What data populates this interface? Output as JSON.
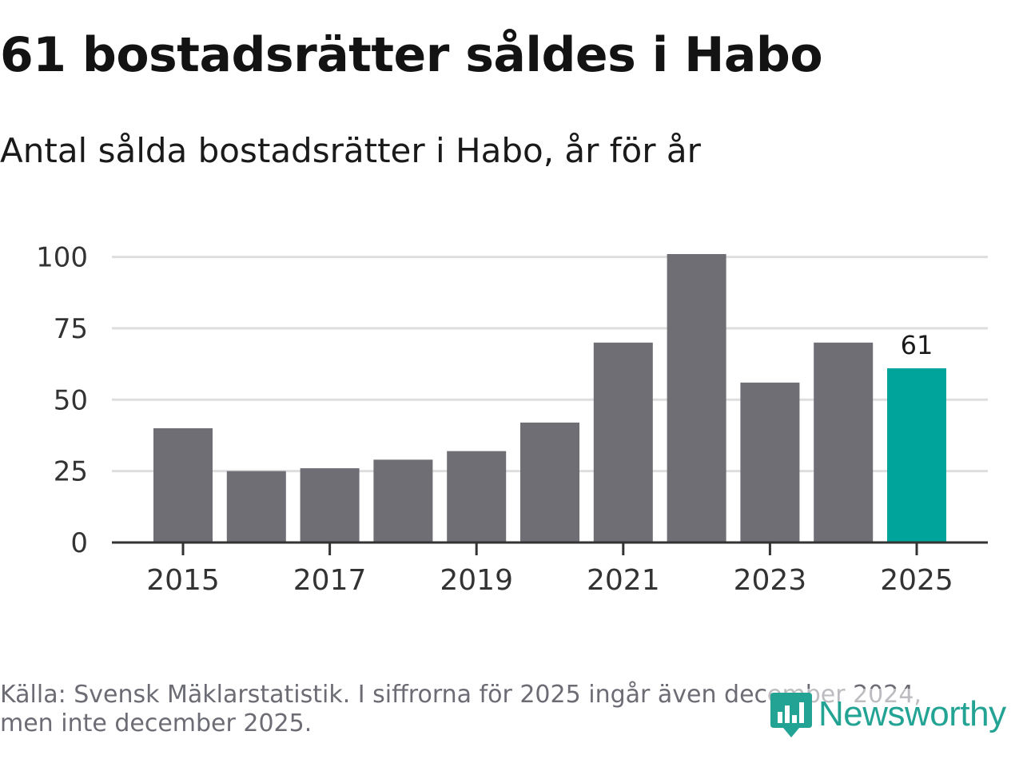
{
  "header": {
    "title": "61 bostadsrätter såldes i Habo",
    "subtitle": "Antal sålda bostadsrätter i Habo, år för år"
  },
  "footer": {
    "source_line1": "Källa: Svensk Mäklarstatistik. I siffrorna för 2025 ingår även december 2024,",
    "source_line2": "men inte december 2025.",
    "logo_text": "Newsworthy",
    "logo_icon": "newsworthy-logo-icon"
  },
  "colors": {
    "bar": "#6f6e75",
    "highlight": "#00a49a",
    "grid": "#dedede",
    "axis": "#333333",
    "tick_text": "#333333",
    "logo": "#22a394"
  },
  "chart_data": {
    "type": "bar",
    "title": "Antal sålda bostadsrätter i Habo, år för år",
    "xlabel": "",
    "ylabel": "",
    "categories": [
      "2015",
      "2016",
      "2017",
      "2018",
      "2019",
      "2020",
      "2021",
      "2022",
      "2023",
      "2024",
      "2025"
    ],
    "values": [
      40,
      25,
      26,
      29,
      32,
      42,
      70,
      101,
      56,
      70,
      61
    ],
    "highlight_index": 10,
    "data_labels": [
      {
        "index": 10,
        "text": "61"
      }
    ],
    "x_tick_labels": [
      "2015",
      "2017",
      "2019",
      "2021",
      "2023",
      "2025"
    ],
    "y_ticks": [
      0,
      25,
      50,
      75,
      100
    ],
    "ylim": [
      0,
      101
    ],
    "grid": true
  }
}
